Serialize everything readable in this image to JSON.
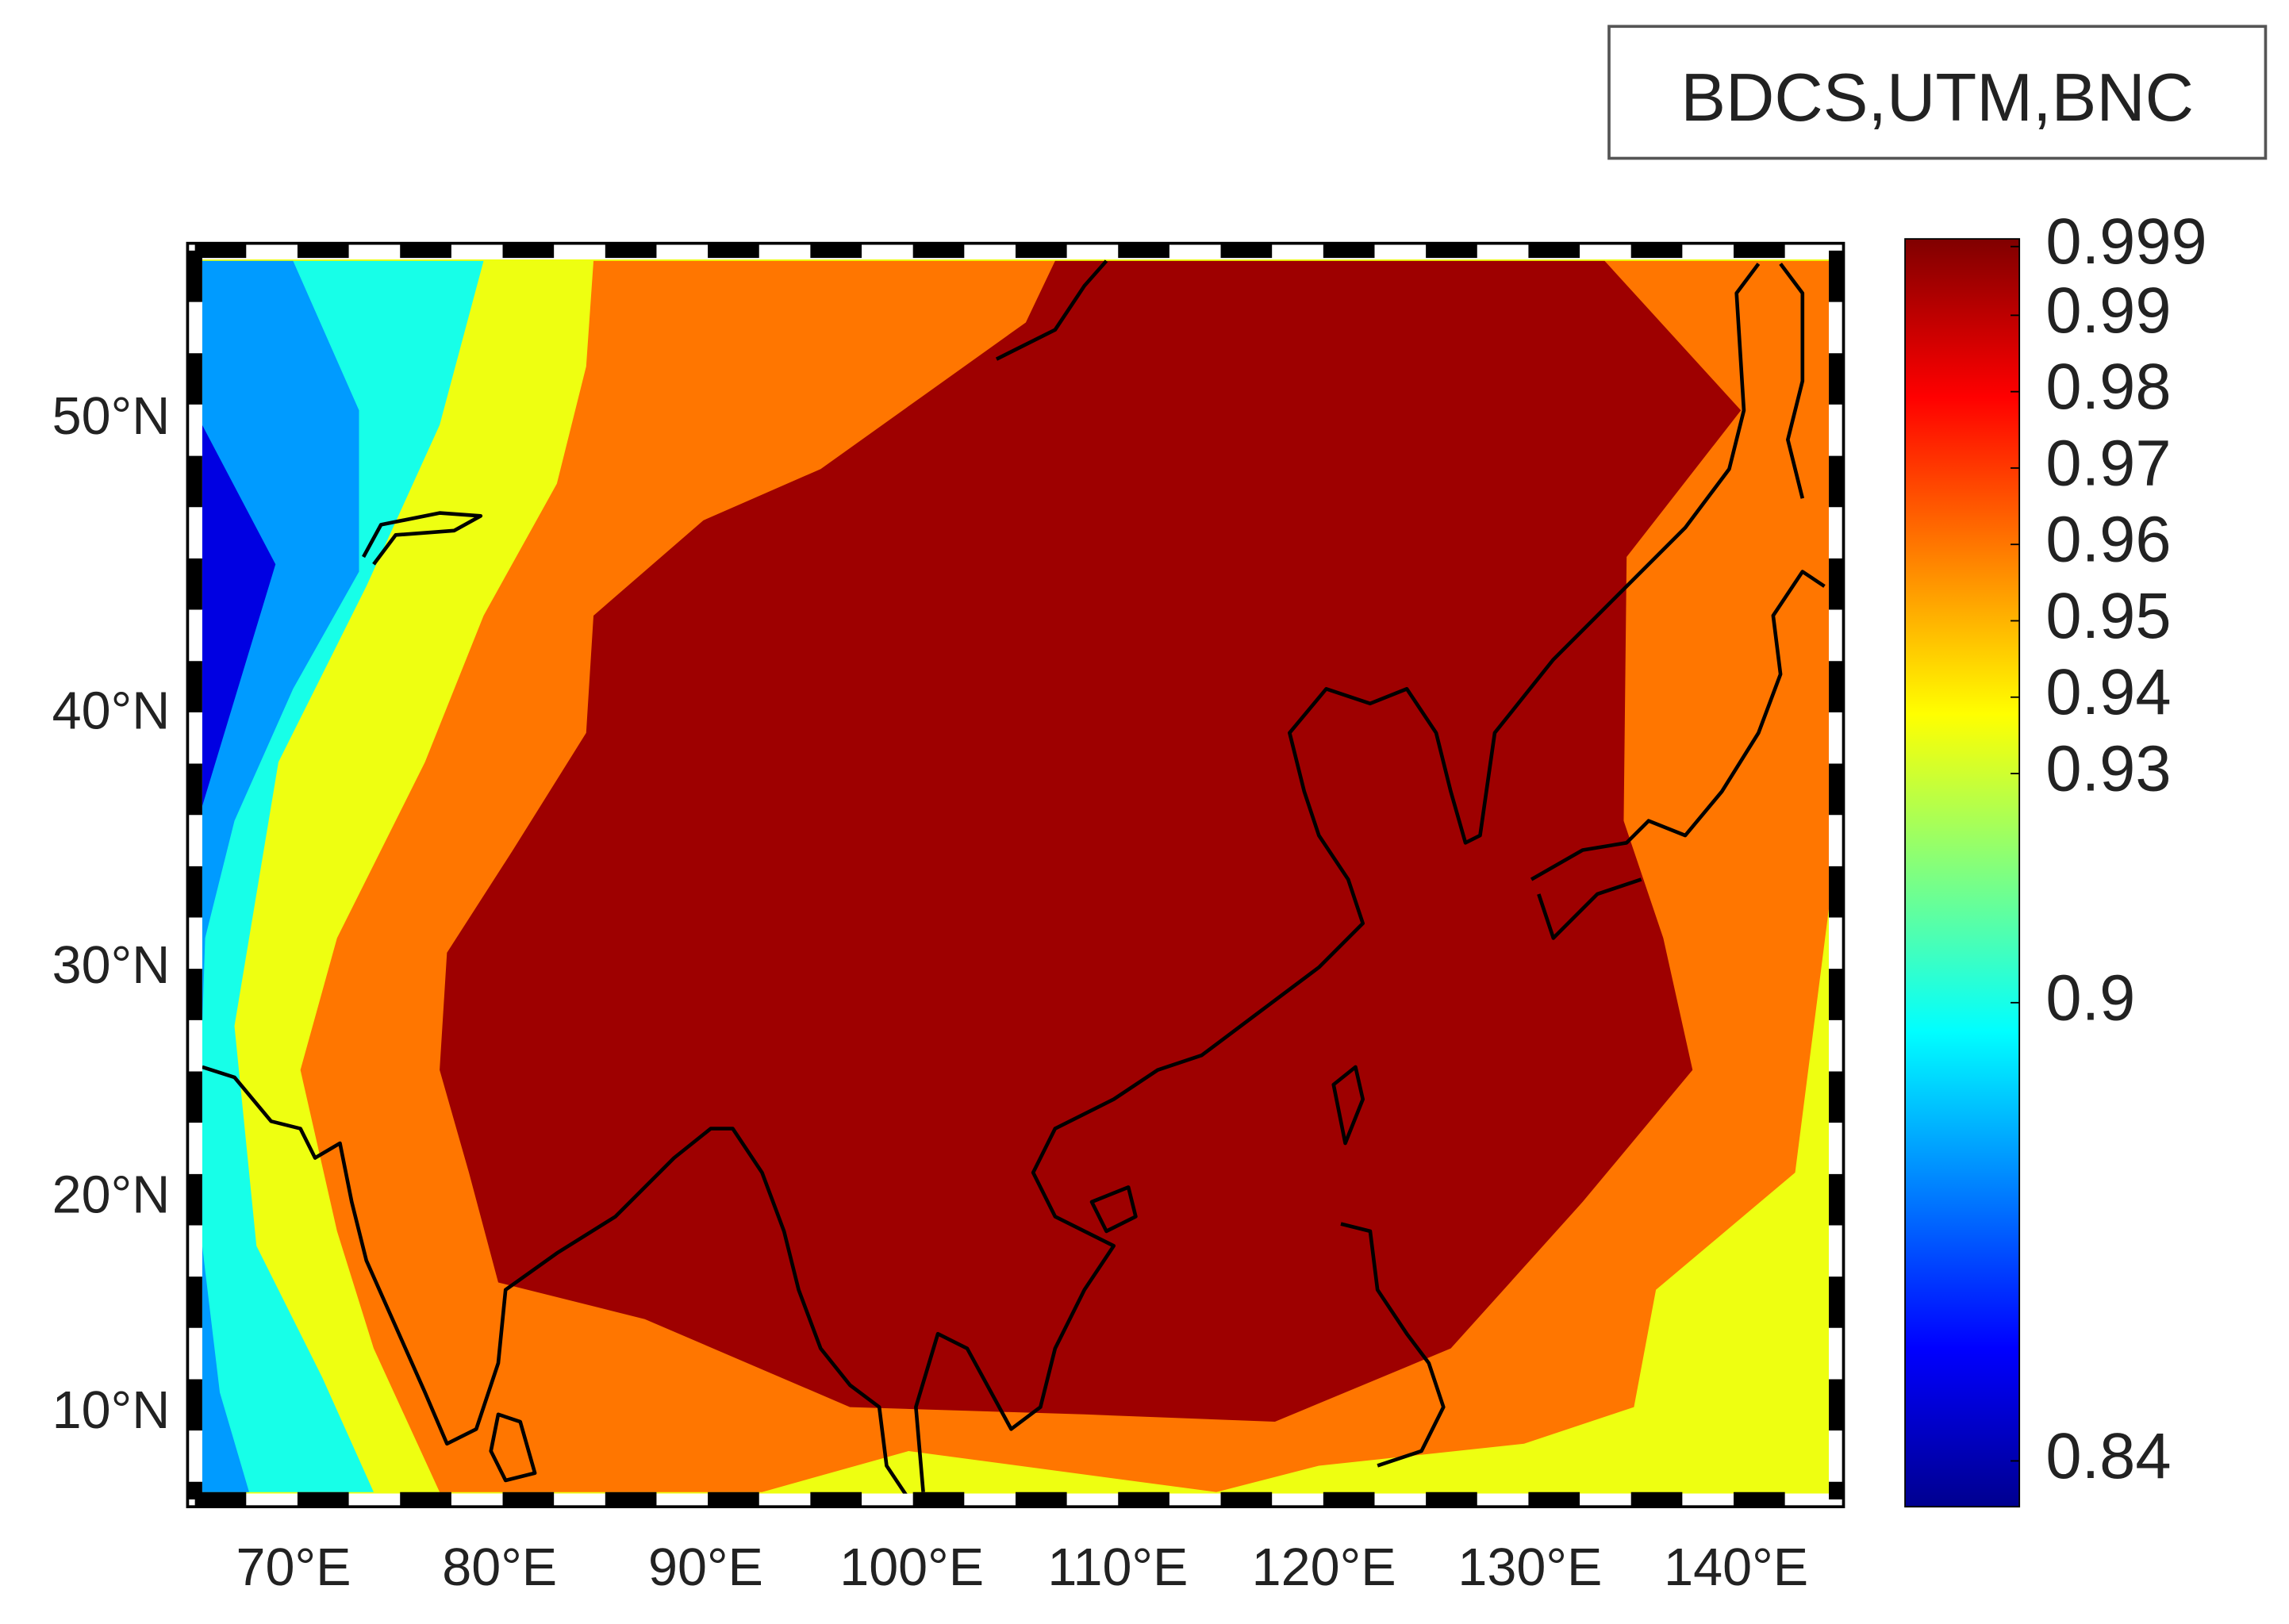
{
  "chart_data": {
    "type": "contour-map",
    "legend": "BDCS,UTM,BNC",
    "projection": "mercator",
    "colormap": "jet",
    "xlim": [
      65,
      145
    ],
    "ylim": [
      6,
      55
    ],
    "xticks": [
      {
        "value": 70,
        "label": "70°E"
      },
      {
        "value": 80,
        "label": "80°E"
      },
      {
        "value": 90,
        "label": "90°E"
      },
      {
        "value": 100,
        "label": "100°E"
      },
      {
        "value": 110,
        "label": "110°E"
      },
      {
        "value": 120,
        "label": "120°E"
      },
      {
        "value": 130,
        "label": "130°E"
      },
      {
        "value": 140,
        "label": "140°E"
      }
    ],
    "yticks": [
      {
        "value": 10,
        "label": "10°N"
      },
      {
        "value": 20,
        "label": "20°N"
      },
      {
        "value": 30,
        "label": "30°N"
      },
      {
        "value": 40,
        "label": "40°N"
      },
      {
        "value": 50,
        "label": "50°N"
      }
    ],
    "clim": [
      0.834,
      1.0
    ],
    "cticks": [
      0.84,
      0.9,
      0.93,
      0.94,
      0.95,
      0.96,
      0.97,
      0.98,
      0.99,
      0.999
    ],
    "contour_levels": [
      0.85,
      0.88,
      0.9,
      0.935,
      0.96,
      0.995
    ]
  }
}
